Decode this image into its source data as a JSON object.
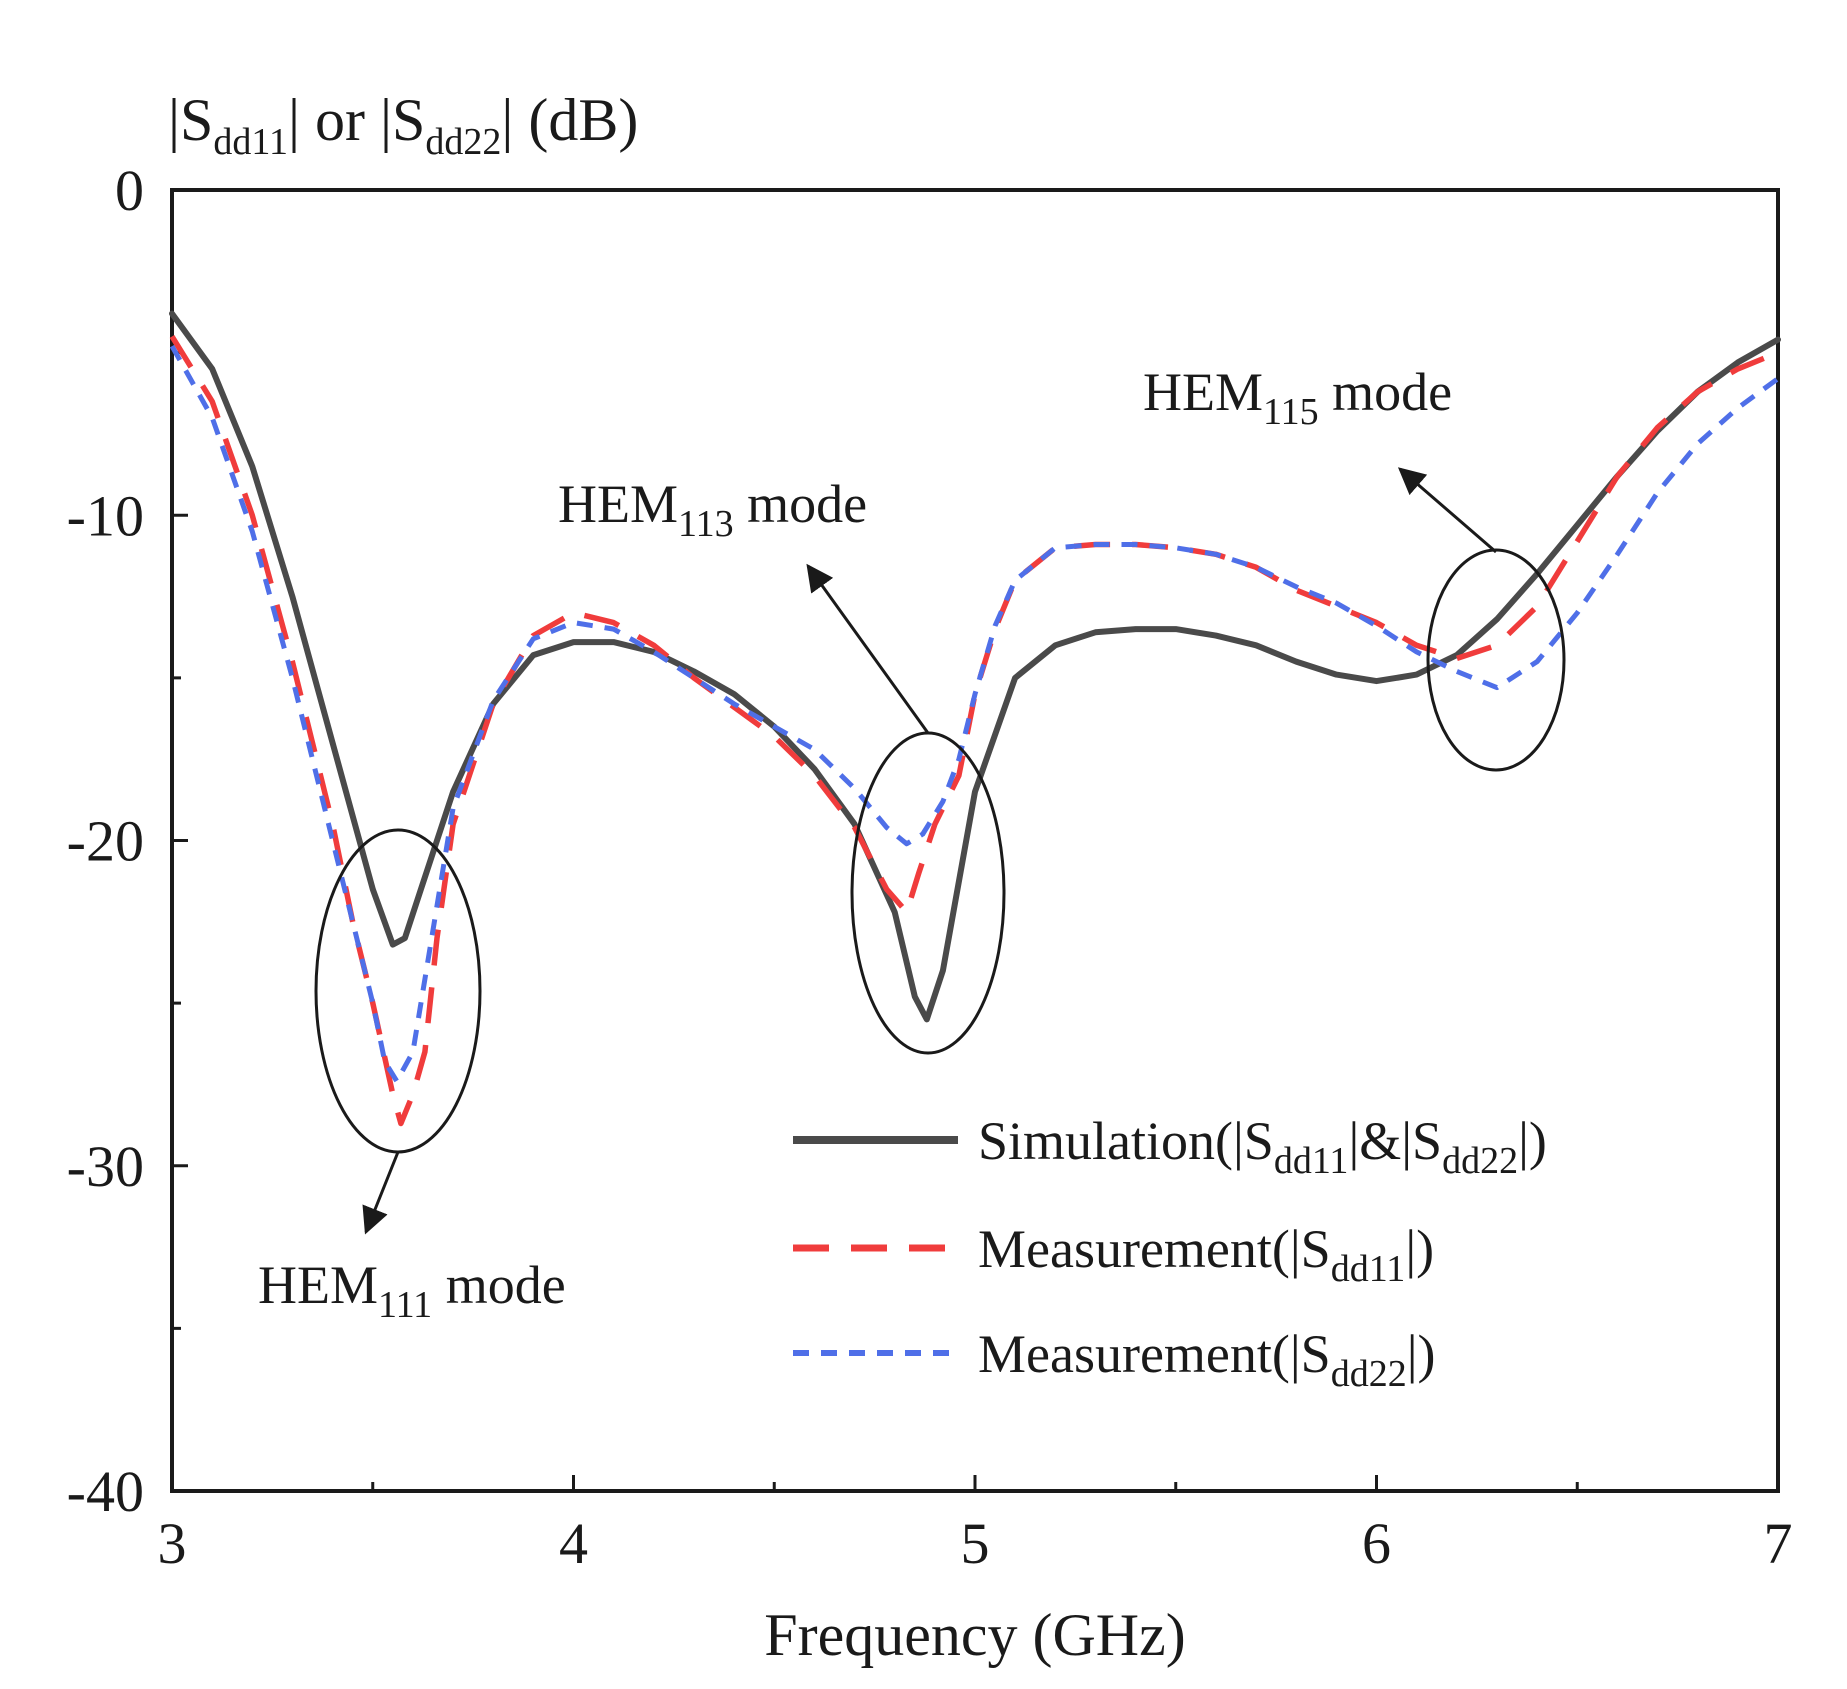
{
  "chart_data": {
    "type": "line",
    "title": "",
    "xlabel": "Frequency (GHz)",
    "ylabel": {
      "prefix": "|S",
      "sub1": "dd11",
      "mid": "| or |S",
      "sub2": "dd22",
      "suffix": "| (dB)"
    },
    "xlim": [
      3,
      7
    ],
    "ylim": [
      -40,
      0
    ],
    "xticks": [
      3,
      4,
      5,
      6,
      7
    ],
    "yticks": [
      0,
      -10,
      -20,
      -30,
      -40
    ],
    "grid": false,
    "legend_position": "bottom-right",
    "series": [
      {
        "name": "Simulation(|Sdd11|&|Sdd22|)",
        "legend": {
          "prefix": "Simulation(|S",
          "sub1": "dd11",
          "mid": "|&|S",
          "sub2": "dd22",
          "suffix": "|)"
        },
        "color": "#4a4a4a",
        "dash": "solid",
        "x": [
          3.0,
          3.1,
          3.2,
          3.3,
          3.4,
          3.5,
          3.55,
          3.58,
          3.62,
          3.7,
          3.8,
          3.9,
          4.0,
          4.1,
          4.2,
          4.3,
          4.4,
          4.5,
          4.6,
          4.7,
          4.8,
          4.85,
          4.88,
          4.92,
          5.0,
          5.1,
          5.2,
          5.3,
          5.4,
          5.5,
          5.6,
          5.7,
          5.8,
          5.9,
          6.0,
          6.1,
          6.2,
          6.3,
          6.4,
          6.5,
          6.6,
          6.7,
          6.8,
          6.9,
          7.0
        ],
        "y": [
          -3.8,
          -5.5,
          -8.5,
          -12.5,
          -17.0,
          -21.5,
          -23.2,
          -23.0,
          -21.5,
          -18.5,
          -15.8,
          -14.3,
          -13.9,
          -13.9,
          -14.2,
          -14.8,
          -15.5,
          -16.5,
          -17.8,
          -19.5,
          -22.2,
          -24.8,
          -25.5,
          -24.0,
          -18.5,
          -15.0,
          -14.0,
          -13.6,
          -13.5,
          -13.5,
          -13.7,
          -14.0,
          -14.5,
          -14.9,
          -15.1,
          -14.9,
          -14.3,
          -13.2,
          -11.8,
          -10.3,
          -8.8,
          -7.4,
          -6.2,
          -5.3,
          -4.6
        ]
      },
      {
        "name": "Measurement(|Sdd11|)",
        "legend": {
          "prefix": "Measurement(|S",
          "sub1": "dd11",
          "mid": "",
          "sub2": "",
          "suffix": "|)"
        },
        "color": "#f03c3c",
        "dash": "long",
        "x": [
          3.0,
          3.1,
          3.2,
          3.3,
          3.4,
          3.45,
          3.5,
          3.55,
          3.57,
          3.6,
          3.63,
          3.66,
          3.7,
          3.8,
          3.9,
          4.0,
          4.1,
          4.2,
          4.3,
          4.4,
          4.5,
          4.6,
          4.7,
          4.78,
          4.83,
          4.86,
          4.9,
          4.96,
          5.0,
          5.05,
          5.1,
          5.2,
          5.3,
          5.4,
          5.5,
          5.6,
          5.7,
          5.8,
          5.9,
          6.0,
          6.1,
          6.2,
          6.3,
          6.4,
          6.5,
          6.6,
          6.7,
          6.8,
          6.9,
          7.0
        ],
        "y": [
          -4.5,
          -6.5,
          -10.0,
          -14.5,
          -19.5,
          -22.5,
          -25.0,
          -27.8,
          -28.7,
          -27.8,
          -26.5,
          -23.0,
          -19.5,
          -15.8,
          -13.7,
          -13.0,
          -13.3,
          -14.0,
          -15.0,
          -15.9,
          -16.8,
          -18.0,
          -19.6,
          -21.5,
          -22.2,
          -21.0,
          -19.5,
          -18.0,
          -15.5,
          -13.5,
          -12.0,
          -11.0,
          -10.9,
          -10.9,
          -11.0,
          -11.2,
          -11.6,
          -12.3,
          -12.8,
          -13.3,
          -14.0,
          -14.4,
          -14.0,
          -12.8,
          -10.8,
          -8.8,
          -7.3,
          -6.2,
          -5.5,
          -5.0
        ]
      },
      {
        "name": "Measurement(|Sdd22|)",
        "legend": {
          "prefix": "Measurement(|S",
          "sub1": "dd22",
          "mid": "",
          "sub2": "",
          "suffix": "|)"
        },
        "color": "#4f6fe8",
        "dash": "short",
        "x": [
          3.0,
          3.1,
          3.2,
          3.3,
          3.4,
          3.45,
          3.5,
          3.53,
          3.56,
          3.6,
          3.64,
          3.7,
          3.8,
          3.9,
          4.0,
          4.1,
          4.2,
          4.3,
          4.4,
          4.5,
          4.6,
          4.7,
          4.78,
          4.83,
          4.87,
          4.92,
          4.96,
          5.0,
          5.05,
          5.1,
          5.2,
          5.3,
          5.4,
          5.5,
          5.6,
          5.7,
          5.8,
          5.9,
          6.0,
          6.1,
          6.2,
          6.3,
          6.4,
          6.5,
          6.6,
          6.7,
          6.8,
          6.9,
          7.0
        ],
        "y": [
          -4.8,
          -7.0,
          -10.5,
          -15.0,
          -20.0,
          -22.5,
          -25.0,
          -26.8,
          -27.4,
          -26.5,
          -23.5,
          -19.0,
          -15.7,
          -13.8,
          -13.3,
          -13.5,
          -14.2,
          -15.0,
          -15.8,
          -16.5,
          -17.2,
          -18.4,
          -19.6,
          -20.1,
          -19.8,
          -18.8,
          -17.5,
          -15.5,
          -13.4,
          -12.0,
          -11.0,
          -10.9,
          -10.9,
          -11.0,
          -11.2,
          -11.6,
          -12.2,
          -12.7,
          -13.4,
          -14.2,
          -14.8,
          -15.3,
          -14.5,
          -13.0,
          -11.2,
          -9.3,
          -7.8,
          -6.7,
          -5.8
        ]
      }
    ],
    "annotations": [
      {
        "text": "HEM",
        "sub": "111",
        "suffix": " mode"
      },
      {
        "text": "HEM",
        "sub": "113",
        "suffix": " mode"
      },
      {
        "text": "HEM",
        "sub": "115",
        "suffix": " mode"
      }
    ]
  }
}
